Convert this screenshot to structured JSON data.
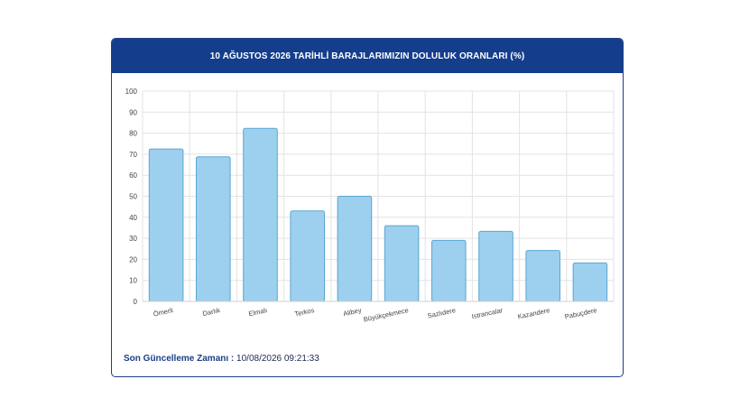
{
  "header": {
    "title": "10 AĞUSTOS 2026 TARİHLİ BARAJLARIMIZIN DOLULUK ORANLARI (%)"
  },
  "footer": {
    "label": "Son Güncelleme Zamanı :",
    "value": "10/08/2026 09:21:33"
  },
  "colors": {
    "header_bg": "#143e8c",
    "bar_fill": "#9dd0ee",
    "bar_stroke": "#5aa6d2",
    "grid": "#e3e3e3"
  },
  "chart_data": {
    "type": "bar",
    "categories": [
      "Ömerli",
      "Darlık",
      "Elmalı",
      "Terkos",
      "Alibey",
      "Büyükçekmece",
      "Sazlıdere",
      "Istrancalar",
      "Kazandere",
      "Pabuçdere"
    ],
    "values": [
      72.5,
      68.8,
      82.3,
      43.0,
      50.0,
      36.0,
      29.0,
      33.3,
      24.2,
      18.3
    ],
    "ylim": [
      0,
      100
    ],
    "yticks": [
      0,
      10,
      20,
      30,
      40,
      50,
      60,
      70,
      80,
      90,
      100
    ],
    "grid": true
  }
}
